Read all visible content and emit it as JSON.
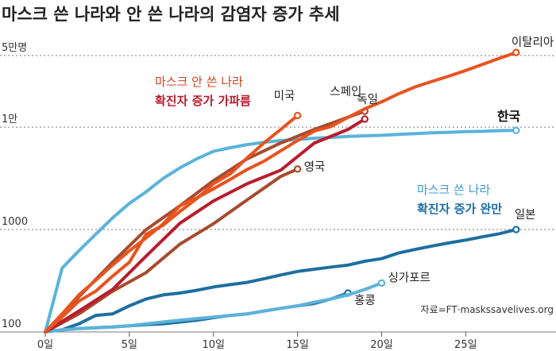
{
  "chart_data": {
    "type": "line",
    "title": "마스크 쓴 나라와 안 쓴 나라의 감염자 증가 추세",
    "y_scale": "log",
    "ylim": [
      100,
      50000
    ],
    "xlim": [
      0,
      29
    ],
    "x_ticks": [
      {
        "value": 0,
        "label": "0일"
      },
      {
        "value": 5,
        "label": "5일"
      },
      {
        "value": 10,
        "label": "10일"
      },
      {
        "value": 15,
        "label": "15일"
      },
      {
        "value": 20,
        "label": "20일"
      },
      {
        "value": 25,
        "label": "25일"
      }
    ],
    "y_ticks": [
      {
        "value": 100,
        "label": "100"
      },
      {
        "value": 1000,
        "label": "1000"
      },
      {
        "value": 10000,
        "label": "1만"
      },
      {
        "value": 50000,
        "label": "5만명"
      }
    ],
    "grid": "dotted horizontal lines",
    "series": [
      {
        "name": "이탈리아",
        "group": "no-mask",
        "color": "#e8531f",
        "label_bold": false,
        "x": [
          0,
          1,
          2,
          3,
          4,
          5,
          6,
          7,
          8,
          9,
          10,
          11,
          12,
          13,
          14,
          15,
          16,
          17,
          18,
          19,
          20,
          21,
          22,
          23,
          24,
          25,
          26,
          27,
          28
        ],
        "y": [
          100,
          150,
          230,
          320,
          450,
          620,
          830,
          1130,
          1700,
          2040,
          2500,
          3090,
          3860,
          4640,
          5880,
          7380,
          9170,
          10150,
          12460,
          15110,
          17660,
          21160,
          24750,
          27980,
          31500,
          35710,
          41030,
          47020,
          53580
        ]
      },
      {
        "name": "한국",
        "group": "mask",
        "color": "#5bb3da",
        "label_bold": true,
        "x": [
          0,
          1,
          2,
          3,
          4,
          5,
          6,
          7,
          8,
          9,
          10,
          11,
          12,
          13,
          14,
          15,
          16,
          17,
          18,
          19,
          20,
          21,
          22,
          23,
          24,
          25,
          26,
          27,
          28
        ],
        "y": [
          100,
          420,
          620,
          900,
          1300,
          1800,
          2340,
          3150,
          4000,
          4900,
          5800,
          6300,
          6750,
          7100,
          7400,
          7560,
          7800,
          7950,
          8100,
          8240,
          8330,
          8500,
          8650,
          8800,
          8900,
          9050,
          9100,
          9250,
          9300
        ]
      },
      {
        "name": "일본",
        "group": "mask",
        "color": "#1d6fa0",
        "label_bold": false,
        "x": [
          0,
          1,
          2,
          3,
          4,
          5,
          6,
          7,
          8,
          9,
          10,
          11,
          12,
          13,
          14,
          15,
          16,
          17,
          18,
          19,
          20,
          21,
          22,
          23,
          24,
          25,
          26,
          27,
          28
        ],
        "y": [
          100,
          105,
          120,
          145,
          150,
          180,
          210,
          230,
          240,
          255,
          275,
          290,
          305,
          330,
          360,
          390,
          410,
          430,
          450,
          490,
          520,
          590,
          640,
          690,
          740,
          790,
          850,
          910,
          1000
        ]
      },
      {
        "name": "싱가포르",
        "group": "mask",
        "color": "#5bb3da",
        "label_bold": false,
        "x": [
          0,
          1,
          2,
          3,
          4,
          5,
          6,
          7,
          8,
          9,
          10,
          11,
          12,
          13,
          14,
          15,
          16,
          17,
          18,
          19,
          20
        ],
        "y": [
          100,
          105,
          108,
          110,
          112,
          115,
          120,
          125,
          130,
          135,
          140,
          145,
          150,
          160,
          170,
          180,
          195,
          210,
          230,
          260,
          300
        ]
      },
      {
        "name": "홍콩",
        "group": "mask",
        "color": "#1d6fa0",
        "label_bold": false,
        "x": [
          0,
          1,
          2,
          3,
          4,
          5,
          6,
          7,
          8,
          9,
          10,
          11,
          12,
          13,
          14,
          15,
          16,
          17,
          18
        ],
        "y": [
          100,
          105,
          108,
          110,
          112,
          115,
          118,
          120,
          125,
          130,
          138,
          145,
          150,
          160,
          170,
          180,
          190,
          210,
          240
        ]
      },
      {
        "name": "미국",
        "group": "no-mask",
        "color": "#e8531f",
        "label_bold": false,
        "x": [
          0,
          1,
          2,
          3,
          4,
          5,
          6,
          7,
          8,
          9,
          10,
          11,
          12,
          13,
          14,
          15
        ],
        "y": [
          100,
          140,
          200,
          250,
          350,
          480,
          900,
          1100,
          1500,
          2000,
          2800,
          3500,
          5000,
          7000,
          9500,
          13000
        ]
      },
      {
        "name": "스페인",
        "group": "no-mask",
        "color": "#a84b2e",
        "label_bold": false,
        "x": [
          0,
          2,
          4,
          6,
          8,
          10,
          12,
          14,
          16,
          18,
          19
        ],
        "y": [
          100,
          220,
          480,
          1000,
          1700,
          3000,
          4900,
          7000,
          9500,
          12500,
          14300
        ]
      },
      {
        "name": "독일",
        "group": "no-mask",
        "color": "#b81d2c",
        "label_bold": false,
        "x": [
          0,
          2,
          4,
          6,
          8,
          10,
          12,
          14,
          16,
          18,
          19
        ],
        "y": [
          100,
          160,
          260,
          550,
          1150,
          1900,
          2800,
          3800,
          7000,
          9500,
          12000
        ]
      },
      {
        "name": "영국",
        "group": "no-mask",
        "color": "#a84b2e",
        "label_bold": false,
        "x": [
          0,
          2,
          4,
          6,
          8,
          10,
          12,
          14,
          15
        ],
        "y": [
          100,
          150,
          250,
          380,
          720,
          1140,
          1950,
          3300,
          3900
        ]
      }
    ],
    "annotations": [
      {
        "line1": "마스크 안 쓴 나라",
        "line2": "확진자 증가 가파름",
        "color1": "#d2421f",
        "color2": "#b81d2c"
      },
      {
        "line1": "마스크 쓴 나라",
        "line2": "확진자 증가 완만",
        "color1": "#3a9ccc",
        "color2": "#1d6fa0"
      }
    ],
    "source": "자료=FT·maskssavelives.org"
  }
}
